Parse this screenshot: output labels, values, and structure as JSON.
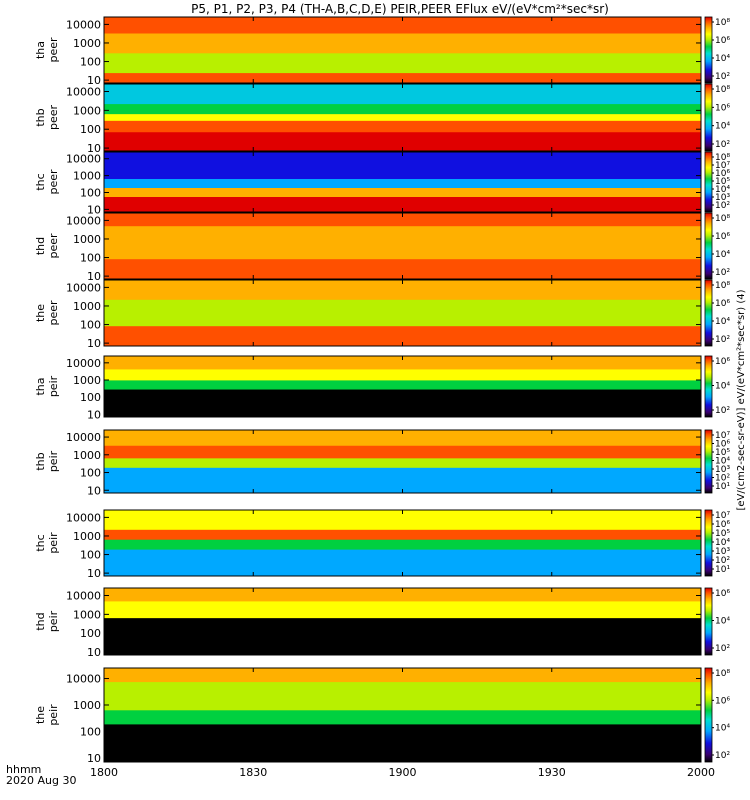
{
  "title": "P5, P1, P2, P3, P4 (TH-A,B,C,D,E) PEIR,PEER EFlux eV/(eV*cm²*sec*sr)",
  "time_axis": {
    "label_top": "hhmm",
    "label_bottom": "2020 Aug 30",
    "ticks": [
      "1800",
      "1830",
      "1900",
      "1930",
      "2000"
    ],
    "range_minutes": [
      0,
      120
    ]
  },
  "colorbar_unit_label": "[eV/(cm2-sec-sr-eV)] eV/(eV*cm²*sec*sr) (4)",
  "colormap": [
    "#000000",
    "#3a0070",
    "#1010e0",
    "#00a8ff",
    "#00e0d0",
    "#00d040",
    "#b8f000",
    "#ffff00",
    "#ffb000",
    "#ff5000",
    "#e00000"
  ],
  "chart_data": [
    {
      "type": "heatmap",
      "probe_label": "tha",
      "product_label": "peer",
      "y_ticks": [
        "10000",
        "1000",
        "100",
        "10"
      ],
      "yscale": "log",
      "ylim": [
        7,
        25000
      ],
      "colorbar_ticks": [
        "10⁸",
        "10⁶",
        "10⁴",
        "10²"
      ],
      "zlim_log10": [
        1,
        8
      ]
    },
    {
      "type": "heatmap",
      "probe_label": "thb",
      "product_label": "peer",
      "y_ticks": [
        "10000",
        "1000",
        "100",
        "10"
      ],
      "yscale": "log",
      "ylim": [
        7,
        25000
      ],
      "colorbar_ticks": [
        "10⁸",
        "10⁶",
        "10⁴",
        "10²"
      ],
      "zlim_log10": [
        1,
        8
      ]
    },
    {
      "type": "heatmap",
      "probe_label": "thc",
      "product_label": "peer",
      "y_ticks": [
        "10000",
        "1000",
        "100",
        "10"
      ],
      "yscale": "log",
      "ylim": [
        7,
        25000
      ],
      "colorbar_ticks": [
        "10⁸",
        "10⁷",
        "10⁶",
        "10⁵",
        "10⁴",
        "10³",
        "10²"
      ],
      "zlim_log10": [
        1,
        8
      ]
    },
    {
      "type": "heatmap",
      "probe_label": "thd",
      "product_label": "peer",
      "y_ticks": [
        "10000",
        "1000",
        "100",
        "10"
      ],
      "yscale": "log",
      "ylim": [
        7,
        25000
      ],
      "colorbar_ticks": [
        "10⁸",
        "10⁶",
        "10⁴",
        "10²"
      ],
      "zlim_log10": [
        1,
        8
      ]
    },
    {
      "type": "heatmap",
      "probe_label": "the",
      "product_label": "peer",
      "y_ticks": [
        "10000",
        "1000",
        "100",
        "10"
      ],
      "yscale": "log",
      "ylim": [
        7,
        25000
      ],
      "colorbar_ticks": [
        "10⁸",
        "10⁶",
        "10⁴",
        "10²"
      ],
      "zlim_log10": [
        1,
        8
      ]
    },
    {
      "type": "heatmap",
      "probe_label": "tha",
      "product_label": "peir",
      "y_ticks": [
        "10000",
        "1000",
        "100",
        "10"
      ],
      "yscale": "log",
      "ylim": [
        7,
        25000
      ],
      "colorbar_ticks": [
        "10⁶",
        "10⁴",
        "10²"
      ],
      "zlim_log10": [
        1,
        7
      ]
    },
    {
      "type": "heatmap",
      "probe_label": "thb",
      "product_label": "peir",
      "y_ticks": [
        "10000",
        "1000",
        "100",
        "10"
      ],
      "yscale": "log",
      "ylim": [
        7,
        25000
      ],
      "colorbar_ticks": [
        "10⁷",
        "10⁶",
        "10⁵",
        "10⁴",
        "10³",
        "10²",
        "10¹"
      ],
      "zlim_log10": [
        1,
        7
      ]
    },
    {
      "type": "heatmap",
      "probe_label": "thc",
      "product_label": "peir",
      "y_ticks": [
        "10000",
        "1000",
        "100",
        "10"
      ],
      "yscale": "log",
      "ylim": [
        7,
        25000
      ],
      "colorbar_ticks": [
        "10⁷",
        "10⁶",
        "10⁵",
        "10⁴",
        "10³",
        "10²",
        "10¹"
      ],
      "zlim_log10": [
        1,
        7
      ]
    },
    {
      "type": "heatmap",
      "probe_label": "thd",
      "product_label": "peir",
      "y_ticks": [
        "10000",
        "1000",
        "100",
        "10"
      ],
      "yscale": "log",
      "ylim": [
        7,
        25000
      ],
      "colorbar_ticks": [
        "10⁶",
        "10⁴",
        "10²"
      ],
      "zlim_log10": [
        1,
        7
      ]
    },
    {
      "type": "heatmap",
      "probe_label": "the",
      "product_label": "peir",
      "y_ticks": [
        "10000",
        "1000",
        "100",
        "10"
      ],
      "yscale": "log",
      "ylim": [
        7,
        25000
      ],
      "colorbar_ticks": [
        "10⁸",
        "10⁶",
        "10⁴",
        "10²"
      ],
      "zlim_log10": [
        1,
        8
      ]
    }
  ]
}
